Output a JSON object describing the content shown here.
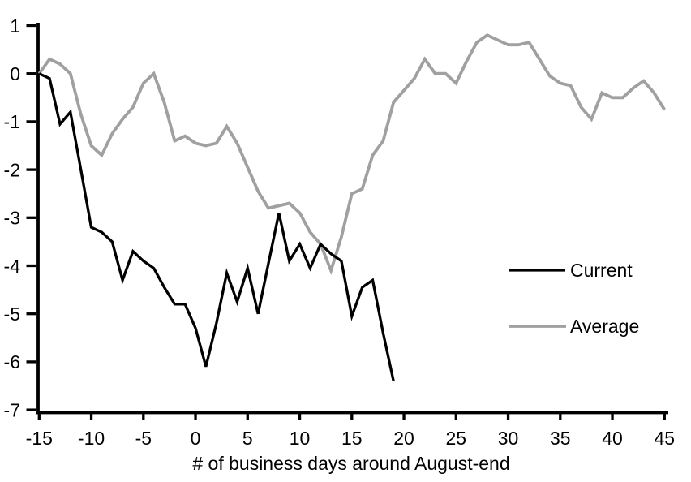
{
  "figure": {
    "background": "#ffffff",
    "axis_color": "#000000"
  },
  "chart_data": {
    "type": "line",
    "title": "",
    "xlabel": "# of business days around August-end",
    "ylabel": "",
    "xlim": [
      -15,
      45
    ],
    "ylim": [
      -7,
      1
    ],
    "x_ticks": [
      -15,
      -10,
      -5,
      0,
      5,
      10,
      15,
      20,
      25,
      30,
      35,
      40,
      45
    ],
    "y_ticks": [
      1,
      0,
      -1,
      -2,
      -3,
      -4,
      -5,
      -6,
      -7
    ],
    "grid": false,
    "legend_position": "right-middle",
    "series": [
      {
        "name": "Current",
        "color": "#000000",
        "stroke_width": 3.3,
        "x_start": -15,
        "x_step": 1,
        "values": [
          0.0,
          -0.1,
          -1.05,
          -0.8,
          -2.0,
          -3.2,
          -3.3,
          -3.5,
          -4.3,
          -3.7,
          -3.9,
          -4.05,
          -4.45,
          -4.8,
          -4.8,
          -5.3,
          -6.1,
          -5.2,
          -4.15,
          -4.75,
          -4.05,
          -5.0,
          -3.95,
          -2.9,
          -3.9,
          -3.55,
          -4.05,
          -3.55,
          -3.75,
          -3.9,
          -5.05,
          -4.45,
          -4.3,
          -5.4,
          -6.4
        ]
      },
      {
        "name": "Average",
        "color": "#a0a0a0",
        "stroke_width": 3.8,
        "x_start": -15,
        "x_step": 1,
        "values": [
          0.0,
          0.3,
          0.2,
          0.0,
          -0.85,
          -1.5,
          -1.7,
          -1.25,
          -0.95,
          -0.7,
          -0.2,
          0.0,
          -0.6,
          -1.4,
          -1.3,
          -1.45,
          -1.5,
          -1.45,
          -1.1,
          -1.45,
          -1.95,
          -2.45,
          -2.8,
          -2.75,
          -2.7,
          -2.9,
          -3.3,
          -3.55,
          -4.1,
          -3.4,
          -2.5,
          -2.4,
          -1.7,
          -1.4,
          -0.6,
          -0.35,
          -0.1,
          0.3,
          0.0,
          0.0,
          -0.2,
          0.25,
          0.65,
          0.8,
          0.7,
          0.6,
          0.6,
          0.65,
          0.3,
          -0.05,
          -0.2,
          -0.25,
          -0.7,
          -0.95,
          -0.4,
          -0.5,
          -0.5,
          -0.3,
          -0.15,
          -0.4,
          -0.75
        ]
      }
    ]
  }
}
